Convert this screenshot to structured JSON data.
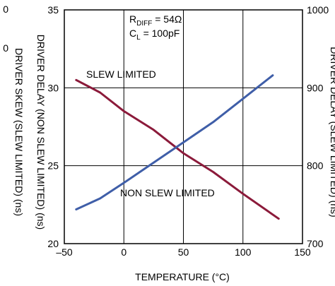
{
  "chart_data": {
    "type": "line",
    "title": "",
    "xlabel": "TEMPERATURE (°C)",
    "ylabel": "DRIVER DELAY (NON SLEW LIMITED) (ns)",
    "ylabel_left_outer": "DRIVER SKEW (SLEW LIMITED) (ns)",
    "ylabel_right": "DRIVER DELAY (SLEW LIMITED) (ns)",
    "xlim": [
      -50,
      150
    ],
    "ylim": [
      20,
      35
    ],
    "ylim_right": [
      700,
      1000
    ],
    "x_ticks": [
      "–50",
      "0",
      "50",
      "100",
      "150"
    ],
    "y_ticks": [
      "20",
      "25",
      "30",
      "35"
    ],
    "y_ticks_right": [
      "700",
      "800",
      "900",
      "1000"
    ],
    "left_cut_ticks": [
      "0",
      "0"
    ],
    "grid": true,
    "conditions": {
      "r_diff_main": "R",
      "r_diff_sub": "DIFF",
      "r_diff_value": " = 54Ω",
      "c_l_main": "C",
      "c_l_sub": "L",
      "c_l_value": " = 100pF"
    },
    "series": [
      {
        "name": "SLEW LIMITED",
        "color": "#8b1a3a",
        "axis": "left",
        "x": [
          -40,
          -20,
          0,
          25,
          50,
          75,
          100,
          130
        ],
        "y": [
          30.5,
          29.7,
          28.5,
          27.3,
          25.8,
          24.6,
          23.2,
          21.6
        ]
      },
      {
        "name": "NON SLEW LIMITED",
        "color": "#3f5ea8",
        "axis": "left",
        "x": [
          -40,
          -20,
          0,
          25,
          50,
          75,
          100,
          125
        ],
        "y": [
          22.2,
          22.9,
          23.9,
          25.2,
          26.5,
          27.8,
          29.3,
          30.8
        ]
      }
    ]
  }
}
